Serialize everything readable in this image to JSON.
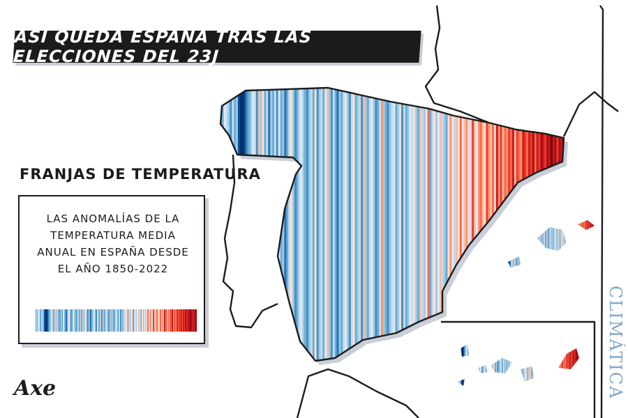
{
  "title": "ASÍ QUEDA ESPAÑA TRAS LAS ELECCIONES DEL 23J",
  "legend": {
    "heading": "FRANJAS DE TEMPERATURA",
    "lines": [
      "LAS ANOMALÍAS DE LA",
      "TEMPERATURA MEDIA",
      "ANUAL EN ESPAÑA DESDE",
      "EL AÑO 1850-2022"
    ]
  },
  "signature": "Axe",
  "brand": "CLIMÁTICA",
  "colors": {
    "ink": "#1b1b1b",
    "brand": "#7ea6c9",
    "shadow": "#c9ced8",
    "palette": [
      "#08306b",
      "#08519c",
      "#2171b5",
      "#4292c6",
      "#6baed6",
      "#9ecae1",
      "#c6dbef",
      "#deebf7",
      "#fee0d2",
      "#fcbba1",
      "#fc9272",
      "#fb6a4a",
      "#ef3b2c",
      "#cb181d",
      "#a50f15",
      "#67000d"
    ]
  },
  "stripes": [
    6,
    5,
    4,
    7,
    6,
    5,
    3,
    6,
    4,
    5,
    1,
    0,
    0,
    1,
    3,
    4,
    5,
    7,
    6,
    3,
    9,
    5,
    8,
    4,
    6,
    2,
    5,
    4,
    6,
    3,
    7,
    4,
    5,
    2,
    4,
    6,
    8,
    5,
    3,
    4,
    6,
    7,
    5,
    4,
    3,
    5,
    6,
    4,
    8,
    3,
    5,
    6,
    4,
    7,
    9,
    5,
    3,
    6,
    4,
    2,
    5,
    4,
    6,
    7,
    5,
    3,
    6,
    8,
    4,
    5,
    6,
    3,
    9,
    5,
    4,
    6,
    7,
    5,
    3,
    4,
    6,
    10,
    5,
    4,
    3,
    5,
    6,
    7,
    4,
    5,
    8,
    3,
    6,
    4,
    5,
    7,
    6,
    8,
    5,
    4,
    9,
    6,
    5,
    7,
    11,
    4,
    6,
    8,
    5,
    7,
    9,
    6,
    5,
    4,
    8,
    10,
    7,
    6,
    9,
    8,
    11,
    7,
    9,
    10,
    8,
    6,
    12,
    9,
    7,
    10,
    11,
    9,
    8,
    12,
    10,
    9,
    11,
    8,
    13,
    10,
    12,
    9,
    11,
    10,
    12,
    11,
    13,
    9,
    12,
    11,
    10,
    13,
    12,
    11,
    13,
    12,
    14,
    11,
    13,
    12,
    14,
    13,
    12,
    14,
    13,
    15,
    13,
    14,
    12,
    14,
    13,
    15,
    14
  ]
}
